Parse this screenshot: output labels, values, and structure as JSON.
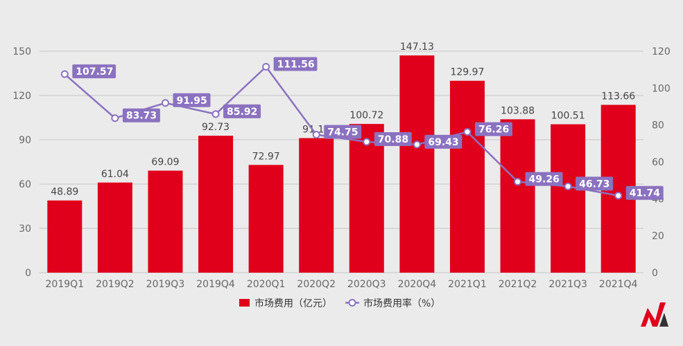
{
  "chart_data": {
    "type": "bar",
    "categories": [
      "2019Q1",
      "2019Q2",
      "2019Q3",
      "2019Q4",
      "2020Q1",
      "2020Q2",
      "2020Q3",
      "2020Q4",
      "2021Q1",
      "2021Q2",
      "2021Q3",
      "2021Q4"
    ],
    "series": [
      {
        "name": "市场费用（亿元）",
        "type": "bar",
        "axis": "left",
        "color": "#e0001b",
        "values": [
          48.89,
          61.04,
          69.09,
          92.73,
          72.97,
          91.14,
          100.72,
          147.13,
          129.97,
          103.88,
          100.51,
          113.66
        ]
      },
      {
        "name": "市场费用率（%）",
        "type": "line",
        "axis": "right",
        "color": "#8b72c0",
        "values": [
          107.57,
          83.73,
          91.95,
          85.92,
          111.56,
          74.75,
          70.88,
          69.43,
          76.26,
          49.26,
          46.73,
          41.74
        ]
      }
    ],
    "y_left": {
      "min": 0,
      "max": 150,
      "ticks": [
        0,
        30,
        60,
        90,
        120,
        150
      ]
    },
    "y_right": {
      "min": 0,
      "max": 120,
      "ticks": [
        0,
        20,
        40,
        60,
        80,
        100,
        120
      ]
    },
    "legend": "bottom-center",
    "grid": true
  },
  "colors": {
    "background": "#ebebeb",
    "grid": "#c6c6c6",
    "logo_red": "#e0001b",
    "logo_dark": "#333333"
  }
}
